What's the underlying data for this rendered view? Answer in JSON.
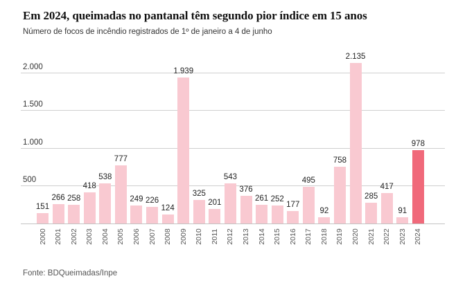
{
  "header": {
    "title": "Em 2024, queimadas no pantanal têm segundo pior índice em 15 anos",
    "subtitle": "Número de focos de incêndio registrados de 1º de janeiro a 4 de junho"
  },
  "footer": {
    "source": "Fonte: BDQueimadas/Inpe"
  },
  "chart_data": {
    "type": "bar",
    "title": "Em 2024, queimadas no pantanal têm segundo pior índice em 15 anos",
    "subtitle": "Número de focos de incêndio registrados de 1º de janeiro a 4 de junho",
    "xlabel": "",
    "ylabel": "",
    "categories": [
      "2000",
      "2001",
      "2002",
      "2003",
      "2004",
      "2005",
      "2006",
      "2007",
      "2008",
      "2009",
      "2010",
      "2011",
      "2012",
      "2013",
      "2014",
      "2015",
      "2016",
      "2017",
      "2018",
      "2019",
      "2020",
      "2021",
      "2022",
      "2023",
      "2024"
    ],
    "values": [
      151,
      266,
      258,
      418,
      538,
      777,
      249,
      226,
      124,
      1939,
      325,
      201,
      543,
      376,
      261,
      252,
      177,
      495,
      92,
      758,
      2135,
      285,
      417,
      91,
      978
    ],
    "value_labels": [
      "151",
      "266",
      "258",
      "418",
      "538",
      "777",
      "249",
      "226",
      "124",
      "1.939",
      "325",
      "201",
      "543",
      "376",
      "261",
      "252",
      "177",
      "495",
      "92",
      "758",
      "2.135",
      "285",
      "417",
      "91",
      "978"
    ],
    "highlight_index": 24,
    "highlight_category": "2024",
    "y_ticks": [
      {
        "value": 500,
        "label": "500"
      },
      {
        "value": 1000,
        "label": "1.000"
      },
      {
        "value": 1500,
        "label": "1.500"
      },
      {
        "value": 2000,
        "label": "2.000"
      }
    ],
    "ylim": [
      0,
      2200
    ],
    "grid": "horizontal",
    "legend": "none",
    "colors": {
      "bar": "#f9c9d1",
      "highlight": "#f0697a",
      "grid": "#cfcfcf",
      "axis": "#c4c4c4"
    },
    "source": "Fonte: BDQueimadas/Inpe"
  }
}
